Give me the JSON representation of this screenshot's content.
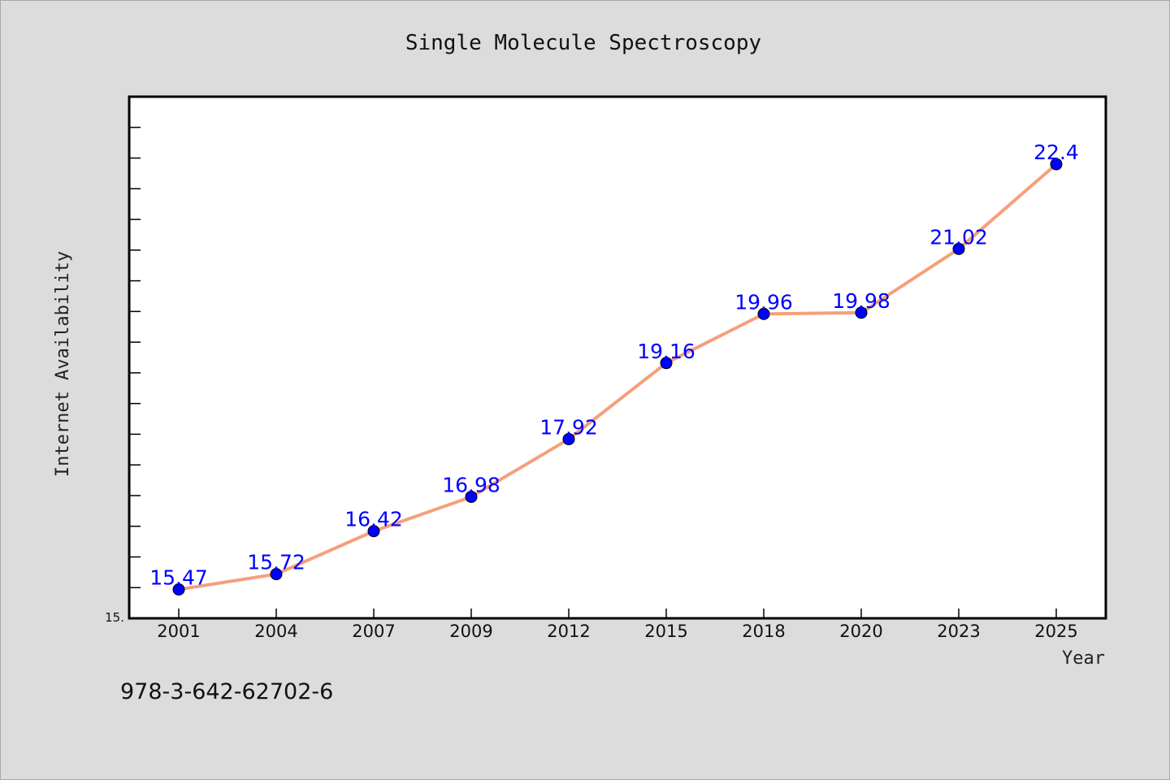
{
  "chart_data": {
    "type": "line",
    "title": "Single Molecule Spectroscopy",
    "xlabel": "Year",
    "ylabel": "Internet Availability",
    "categories": [
      "2001",
      "2004",
      "2007",
      "2009",
      "2012",
      "2015",
      "2018",
      "2020",
      "2023",
      "2025"
    ],
    "series": [
      {
        "values": [
          15.47,
          15.72,
          16.42,
          16.98,
          17.92,
          19.16,
          19.96,
          19.98,
          21.02,
          22.4
        ]
      }
    ],
    "data_labels": [
      "15.47",
      "15.72",
      "16.42",
      "16.98",
      "17.92",
      "19.16",
      "19.96",
      "19.98",
      "21.02",
      "22.4"
    ],
    "ylim": [
      15.0,
      23.5
    ],
    "y_tick_label": "15.",
    "grid": false,
    "line_color": "#f4a07c",
    "marker_color": "#0000ff",
    "label_color": "#0000ff"
  },
  "footer": {
    "isbn": "978-3-642-62702-6"
  }
}
